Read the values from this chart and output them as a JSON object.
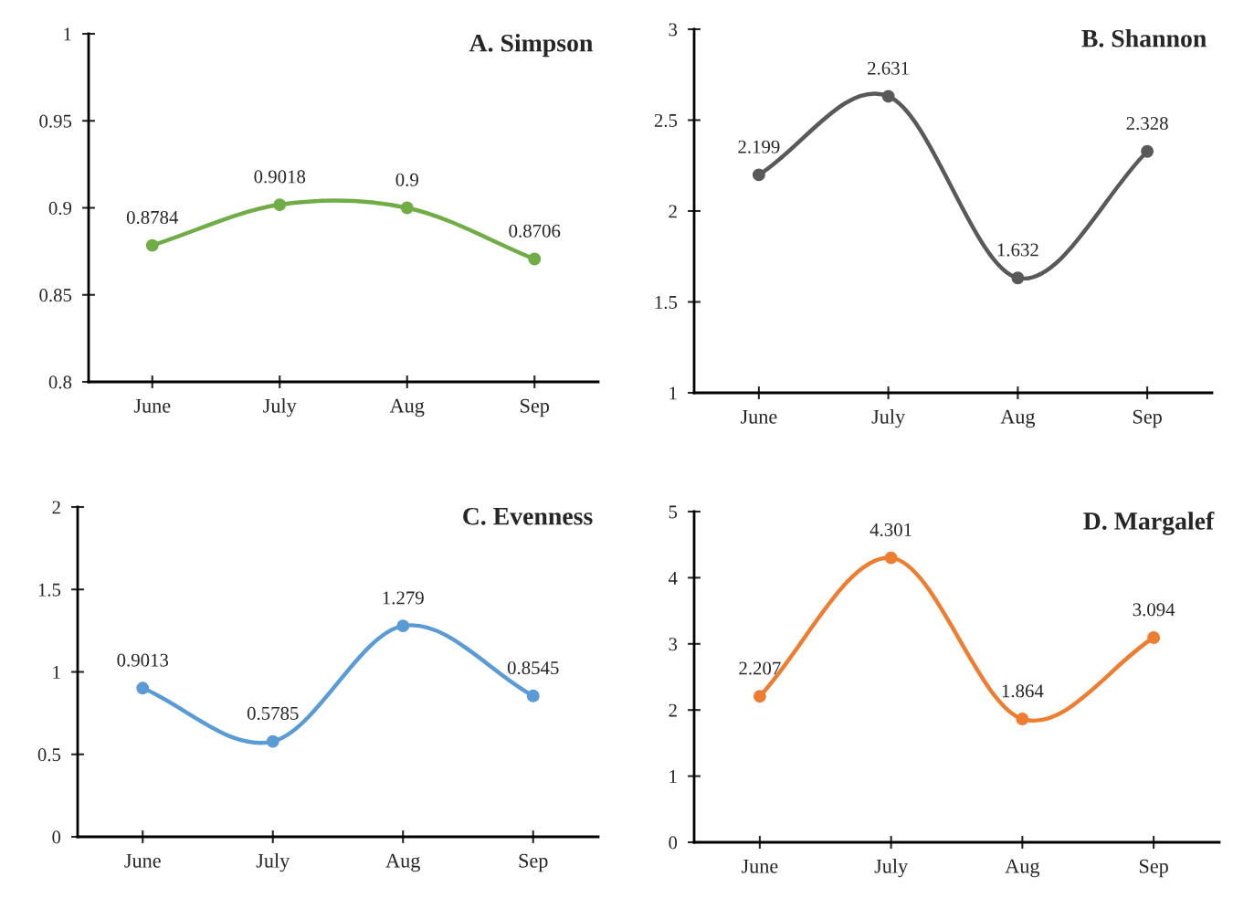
{
  "chart_data": [
    {
      "type": "line",
      "title": "A. Simpson",
      "categories": [
        "June",
        "July",
        "Aug",
        "Sep"
      ],
      "series": [
        {
          "color": "#70ad47",
          "values": [
            0.8784,
            0.9018,
            0.9,
            0.8706
          ]
        }
      ],
      "ylim": [
        0.8,
        1
      ],
      "yticks": [
        0.8,
        0.85,
        0.9,
        0.95,
        1
      ],
      "data_labels": true,
      "marker": "circle",
      "grid": false
    },
    {
      "type": "line",
      "title": "B. Shannon",
      "categories": [
        "June",
        "July",
        "Aug",
        "Sep"
      ],
      "series": [
        {
          "color": "#595959",
          "values": [
            2.199,
            2.631,
            1.632,
            2.328
          ]
        }
      ],
      "ylim": [
        1,
        3
      ],
      "yticks": [
        1,
        1.5,
        2,
        2.5,
        3
      ],
      "data_labels": true,
      "marker": "circle",
      "grid": false
    },
    {
      "type": "line",
      "title": "C. Evenness",
      "categories": [
        "June",
        "July",
        "Aug",
        "Sep"
      ],
      "series": [
        {
          "color": "#5b9bd5",
          "values": [
            0.9013,
            0.5785,
            1.279,
            0.8545
          ]
        }
      ],
      "ylim": [
        0,
        2
      ],
      "yticks": [
        0,
        0.5,
        1,
        1.5,
        2
      ],
      "data_labels": true,
      "marker": "circle",
      "grid": false
    },
    {
      "type": "line",
      "title": "D. Margalef",
      "categories": [
        "June",
        "July",
        "Aug",
        "Sep"
      ],
      "series": [
        {
          "color": "#ed7d31",
          "values": [
            2.207,
            4.301,
            1.864,
            3.094
          ]
        }
      ],
      "ylim": [
        0,
        5
      ],
      "yticks": [
        0,
        1,
        2,
        3,
        4,
        5
      ],
      "data_labels": true,
      "marker": "circle",
      "grid": false
    }
  ]
}
